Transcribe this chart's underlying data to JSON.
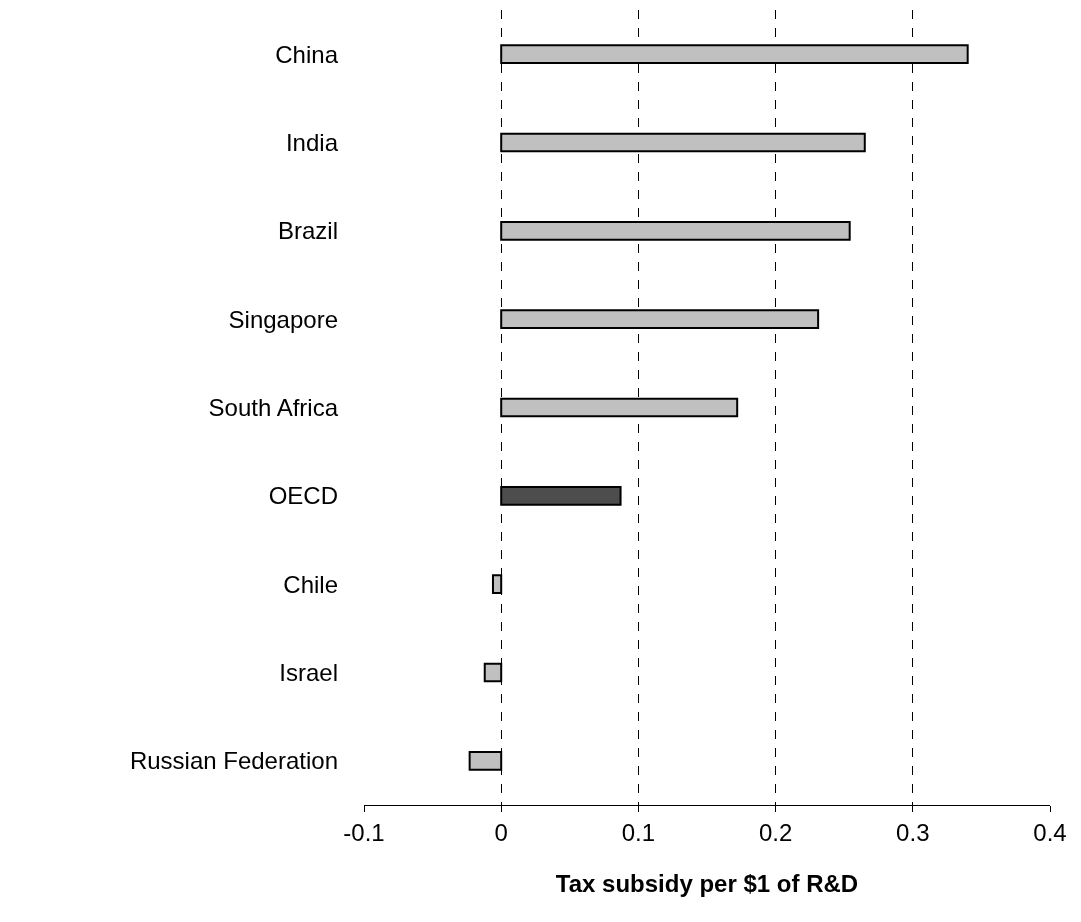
{
  "chart_data": {
    "type": "bar",
    "orientation": "horizontal",
    "xlabel": "Tax subsidy per $1 of R&D",
    "categories": [
      "China",
      "India",
      "Brazil",
      "Singapore",
      "South Africa",
      "OECD",
      "Chile",
      "Israel",
      "Russian Federation"
    ],
    "values": [
      0.34,
      0.265,
      0.254,
      0.231,
      0.172,
      0.087,
      -0.006,
      -0.012,
      -0.023
    ],
    "colors": [
      "#c0c0c0",
      "#c0c0c0",
      "#c0c0c0",
      "#c0c0c0",
      "#c0c0c0",
      "#4d4d4d",
      "#c0c0c0",
      "#c0c0c0",
      "#c0c0c0"
    ],
    "xlim": [
      -0.1,
      0.4
    ],
    "xticks": [
      -0.1,
      0,
      0.1,
      0.2,
      0.3,
      0.4
    ],
    "grid": "x"
  }
}
